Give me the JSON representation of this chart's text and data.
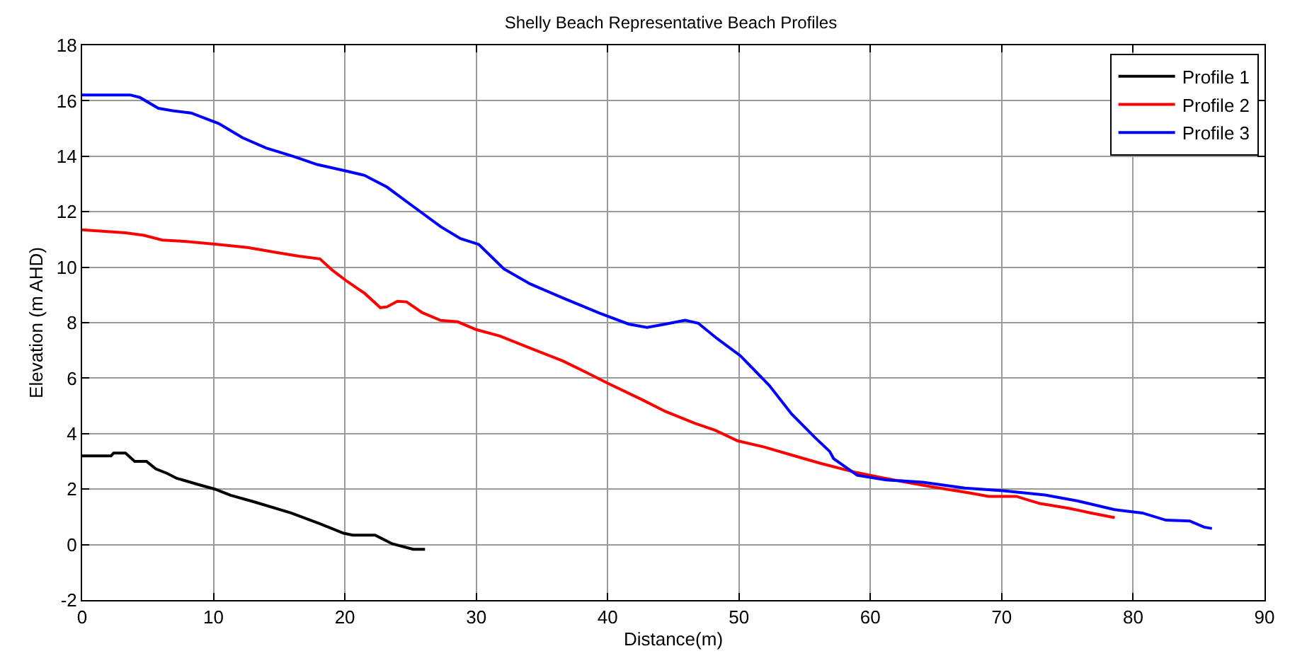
{
  "chart_data": {
    "type": "line",
    "title": "Shelly Beach Representative Beach Profiles",
    "xlabel": "Distance(m)",
    "ylabel": "Elevation (m AHD)",
    "xlim": [
      0,
      90
    ],
    "xticks": [
      0,
      10,
      20,
      30,
      40,
      50,
      60,
      70,
      80,
      90
    ],
    "ylim": [
      -2,
      18
    ],
    "yticks": [
      -2,
      0,
      2,
      4,
      6,
      8,
      10,
      12,
      14,
      16,
      18
    ],
    "grid": true,
    "legend": "top right",
    "marker": "none",
    "line_style": "solid",
    "series": [
      {
        "name": "Profile 1",
        "color": "#000000",
        "x": [
          0,
          2.2,
          2.4,
          3.3,
          4.0,
          4.9,
          5.6,
          6.5,
          7.2,
          8.8,
          10.1,
          11.3,
          13.1,
          15.9,
          18.1,
          19.9,
          20.6,
          22.3,
          23.6,
          25.2,
          26.1
        ],
        "values": [
          3.2,
          3.2,
          3.3,
          3.3,
          3.0,
          3.0,
          2.73,
          2.56,
          2.39,
          2.17,
          2.0,
          1.78,
          1.54,
          1.14,
          0.75,
          0.41,
          0.34,
          0.34,
          0.03,
          -0.17,
          -0.17
        ]
      },
      {
        "name": "Profile 2",
        "color": "#ff0000",
        "x": [
          0,
          3.3,
          4.7,
          6.1,
          7.9,
          10.1,
          12.6,
          14.7,
          16.5,
          18.1,
          19.1,
          20.2,
          21.5,
          22.7,
          23.2,
          24.0,
          24.7,
          25.9,
          27.3,
          28.6,
          30.0,
          31.8,
          34.5,
          36.6,
          38.4,
          40.0,
          42.6,
          44.4,
          46.6,
          48.2,
          49.9,
          51.9,
          54.0,
          56.2,
          59.0,
          61.2,
          64.7,
          67.6,
          69.0,
          71.1,
          72.9,
          75.1,
          76.8,
          78.6
        ],
        "values": [
          11.35,
          11.24,
          11.15,
          10.98,
          10.93,
          10.83,
          10.71,
          10.54,
          10.4,
          10.3,
          9.87,
          9.48,
          9.06,
          8.54,
          8.57,
          8.77,
          8.75,
          8.36,
          8.08,
          8.03,
          7.75,
          7.52,
          7.01,
          6.62,
          6.2,
          5.82,
          5.23,
          4.8,
          4.38,
          4.12,
          3.74,
          3.52,
          3.23,
          2.93,
          2.59,
          2.38,
          2.08,
          1.86,
          1.74,
          1.74,
          1.48,
          1.31,
          1.14,
          0.97
        ]
      },
      {
        "name": "Profile 3",
        "color": "#0000ff",
        "x": [
          0,
          3.65,
          4.4,
          5.8,
          6.9,
          8.3,
          10.4,
          12.2,
          14.0,
          16.1,
          17.9,
          20.0,
          21.5,
          23.2,
          25.0,
          27.3,
          28.8,
          30.2,
          32.1,
          34.1,
          36.6,
          39.4,
          41.6,
          43.0,
          44.4,
          45.9,
          46.9,
          48.3,
          50.1,
          52.3,
          54.0,
          55.8,
          56.9,
          57.2,
          59.0,
          61.2,
          64.0,
          67.2,
          70.1,
          73.3,
          75.8,
          78.6,
          80.7,
          82.5,
          84.3,
          85.4,
          86.0
        ],
        "values": [
          16.21,
          16.21,
          16.12,
          15.73,
          15.64,
          15.56,
          15.18,
          14.67,
          14.3,
          13.99,
          13.7,
          13.48,
          13.31,
          12.89,
          12.26,
          11.46,
          11.03,
          10.82,
          9.94,
          9.4,
          8.89,
          8.34,
          7.95,
          7.83,
          7.95,
          8.09,
          7.98,
          7.44,
          6.81,
          5.74,
          4.71,
          3.85,
          3.36,
          3.1,
          2.5,
          2.33,
          2.25,
          2.04,
          1.94,
          1.79,
          1.57,
          1.26,
          1.14,
          0.88,
          0.85,
          0.63,
          0.58
        ]
      }
    ]
  }
}
